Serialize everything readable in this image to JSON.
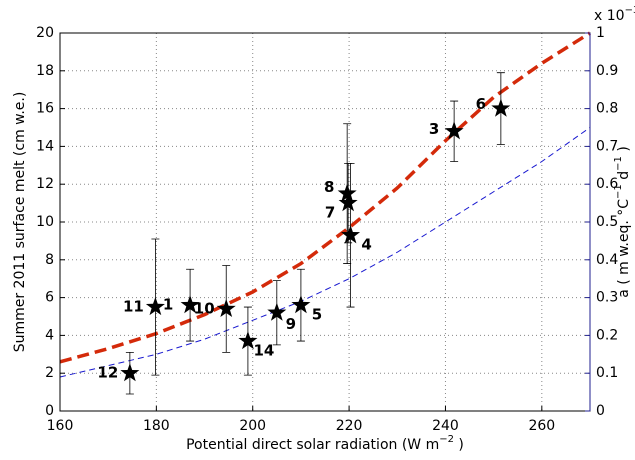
{
  "chart_data": {
    "type": "scatter",
    "xlabel": {
      "text": "Potential direct solar radiation (W m",
      "sup": "−2",
      "end": " )"
    },
    "ylabel": "Summer 2011 surface melt (cm w.e.)",
    "y2label": {
      "text": "a ( m w.eq. °C",
      "sup1": "−1",
      "mid": " d",
      "sup2": "−1",
      "end": " )"
    },
    "y2exponent": {
      "text": "x 10",
      "sup": "−3"
    },
    "xlim": [
      160,
      270
    ],
    "xticks": [
      160,
      180,
      200,
      220,
      240,
      260
    ],
    "ylim": [
      0,
      20
    ],
    "yticks": [
      0,
      2,
      4,
      6,
      8,
      10,
      12,
      14,
      16,
      18,
      20
    ],
    "y2lim": [
      0,
      1
    ],
    "y2ticks": [
      0,
      0.1,
      0.2,
      0.3,
      0.4,
      0.5,
      0.6,
      0.7,
      0.8,
      0.9,
      1
    ],
    "y2color": "#1f1f8f",
    "grid": true,
    "series": [
      {
        "type": "line",
        "color": "#1a1ad0",
        "axis": "y2",
        "x": [
          160,
          170,
          180,
          190,
          200,
          210,
          220,
          230,
          240,
          250,
          260,
          270
        ],
        "values": [
          0.09,
          0.12,
          0.15,
          0.19,
          0.24,
          0.29,
          0.35,
          0.42,
          0.5,
          0.58,
          0.66,
          0.75
        ]
      },
      {
        "type": "line",
        "color": "#d42a0a",
        "x": [
          160,
          170,
          180,
          190,
          200,
          210,
          220,
          230,
          240,
          250,
          260,
          270
        ],
        "values": [
          2.6,
          3.3,
          4.1,
          5.1,
          6.3,
          7.8,
          9.7,
          11.8,
          14.3,
          16.6,
          18.4,
          20
        ]
      },
      {
        "type": "points",
        "color": "#000000",
        "labels": [
          "12",
          "11",
          "1",
          "10",
          "14",
          "9",
          "5",
          "8",
          "7",
          "4",
          "3",
          "6"
        ],
        "x": [
          174.5,
          179.8,
          187,
          194.5,
          199,
          205,
          210,
          219.6,
          219.8,
          220.3,
          241.8,
          251.5
        ],
        "values": [
          2.0,
          5.5,
          5.6,
          5.4,
          3.7,
          5.2,
          5.6,
          11.5,
          11.0,
          9.3,
          14.8,
          16.0
        ],
        "errors": [
          1.1,
          3.6,
          1.9,
          2.3,
          1.8,
          1.7,
          1.9,
          3.7,
          2.1,
          3.8,
          1.6,
          1.9
        ]
      }
    ]
  }
}
